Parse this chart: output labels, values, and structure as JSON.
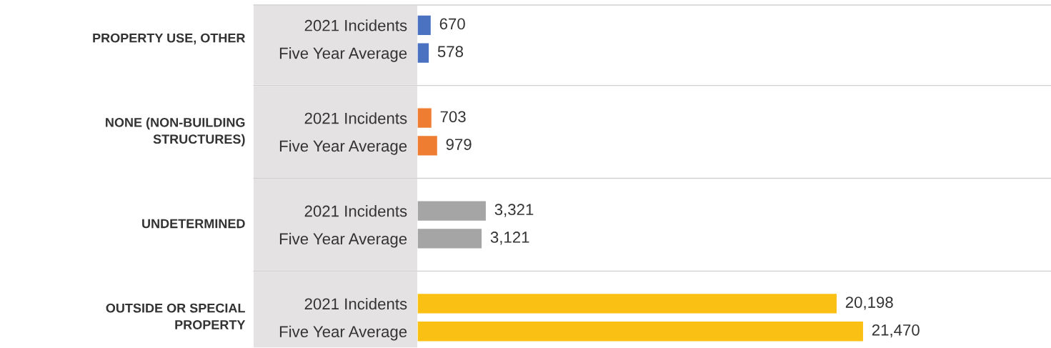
{
  "chart_data": {
    "type": "bar",
    "orientation": "horizontal",
    "categories": [
      "2021 Incidents",
      "Five Year Average",
      "2021 Incidents",
      "Five Year Average",
      "2021 Incidents",
      "Five Year Average",
      "2021 Incidents",
      "Five Year Average"
    ],
    "values": [
      670,
      578,
      703,
      979,
      3321,
      3121,
      20198,
      21470
    ],
    "colors": [
      "#4a72c0",
      "#4a72c0",
      "#ee7d31",
      "#ee7d31",
      "#a5a5a5",
      "#a5a5a5",
      "#fbc014",
      "#fbc014"
    ],
    "value_labels": [
      "670",
      "578",
      "703",
      "979",
      "3,321",
      "3,121",
      "20,198",
      "21,470"
    ],
    "annotations": [
      "PROPERTY USE, OTHER",
      "NONE (NON-BUILDING\nSTRUCTURES)",
      "UNDETERMINED",
      "OUTSIDE OR SPECIAL\nPROPERTY"
    ],
    "grid": false,
    "legend": false
  }
}
